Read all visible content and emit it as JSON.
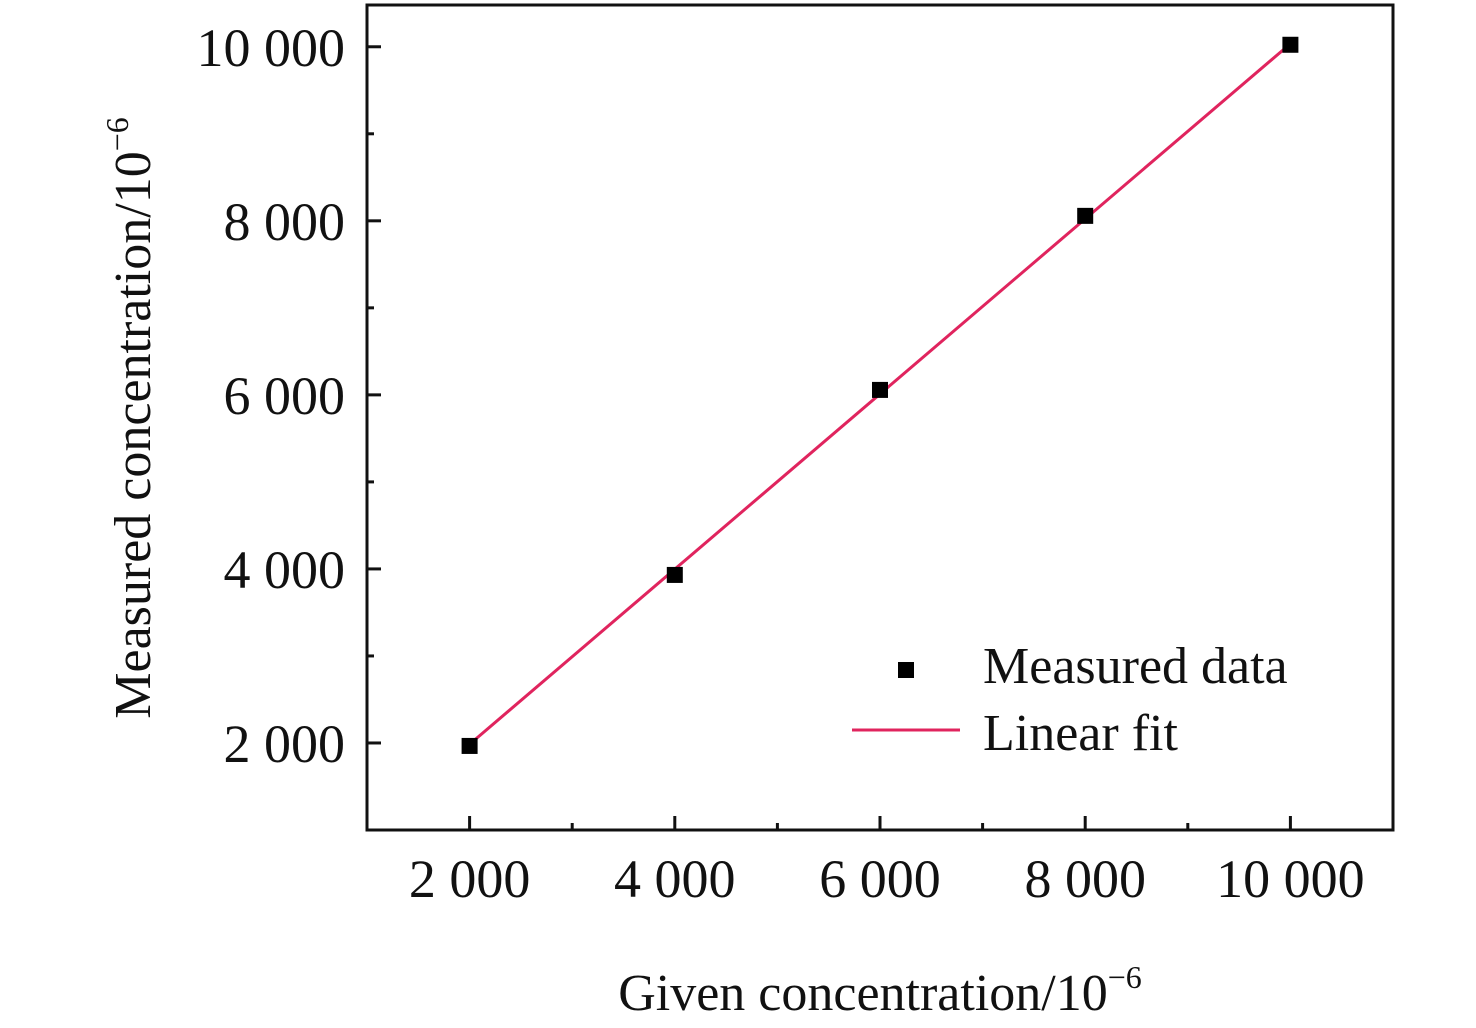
{
  "chart_data": {
    "type": "scatter",
    "title": "",
    "xlabel": "Given concentration/10",
    "xlabel_sup": "−6",
    "ylabel": "Measured concentration/10",
    "ylabel_sup": "−6",
    "xlim": [
      1000,
      11000
    ],
    "ylim": [
      1000,
      10480
    ],
    "xticks": [
      2000,
      4000,
      6000,
      8000,
      10000
    ],
    "xtick_labels": [
      "2 000",
      "4 000",
      "6 000",
      "8 000",
      "10 000"
    ],
    "yticks": [
      2000,
      4000,
      6000,
      8000,
      10000
    ],
    "ytick_labels": [
      "2 000",
      "4 000",
      "6 000",
      "8 000",
      "10 000"
    ],
    "grid": false,
    "legend_position": "bottom-right",
    "series": [
      {
        "name": "Measured data",
        "kind": "scatter",
        "marker": "square",
        "color": "#000000",
        "x": [
          2000,
          4000,
          6000,
          8000,
          10000
        ],
        "y": [
          1966,
          3931,
          6057,
          8057,
          10023
        ]
      },
      {
        "name": "Linear fit",
        "kind": "line",
        "color": "#e0245e",
        "x": [
          2000,
          10000
        ],
        "y": [
          1985,
          10035
        ]
      }
    ]
  }
}
